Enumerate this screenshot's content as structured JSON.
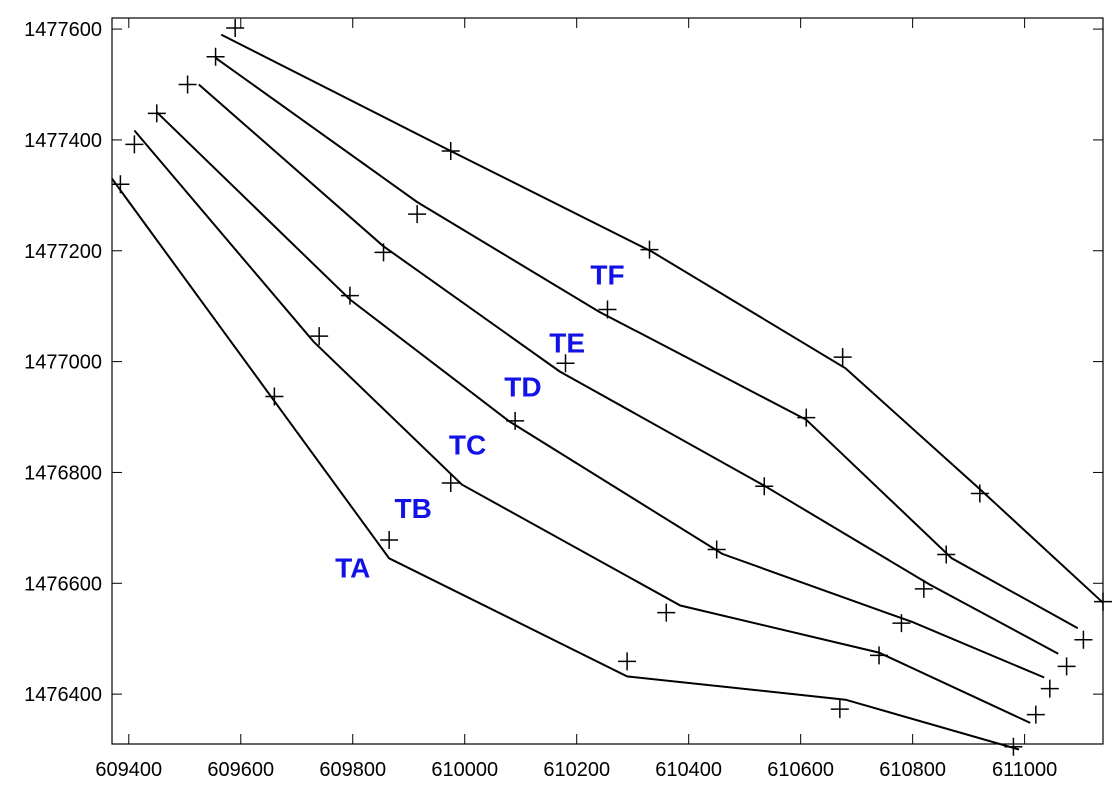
{
  "chart_data": {
    "type": "line",
    "title": "",
    "xlabel": "",
    "ylabel": "",
    "xlim": [
      609370,
      611140
    ],
    "ylim": [
      1476310,
      1477620
    ],
    "x_ticks": [
      609400,
      609600,
      609800,
      610000,
      610200,
      610400,
      610600,
      610800,
      611000
    ],
    "y_ticks": [
      1476400,
      1476600,
      1476800,
      1477000,
      1477200,
      1477400,
      1477600
    ],
    "label_color": "#1212e6",
    "line_color": "#000000",
    "series": [
      {
        "name": "TA",
        "label_at": [
          609800,
          1476610
        ],
        "line": [
          [
            609370,
            1477330
          ],
          [
            609865,
            1476645
          ],
          [
            610290,
            1476432
          ],
          [
            610680,
            1476390
          ],
          [
            610990,
            1476300
          ]
        ]
      },
      {
        "name": "TB",
        "label_at": [
          609908,
          1476718
        ],
        "line": [
          [
            609410,
            1477417
          ],
          [
            609730,
            1477036
          ],
          [
            609995,
            1476778
          ],
          [
            610385,
            1476560
          ],
          [
            610740,
            1476475
          ],
          [
            611010,
            1476348
          ]
        ]
      },
      {
        "name": "TC",
        "label_at": [
          610005,
          1476832
        ],
        "line": [
          [
            609450,
            1477450
          ],
          [
            609795,
            1477112
          ],
          [
            610080,
            1476892
          ],
          [
            610460,
            1476653
          ],
          [
            610800,
            1476530
          ],
          [
            611035,
            1476430
          ]
        ]
      },
      {
        "name": "TD",
        "label_at": [
          610104,
          1476937
        ],
        "line": [
          [
            609525,
            1477500
          ],
          [
            609855,
            1477208
          ],
          [
            610170,
            1476982
          ],
          [
            610535,
            1476776
          ],
          [
            610830,
            1476598
          ],
          [
            611060,
            1476473
          ]
        ]
      },
      {
        "name": "TE",
        "label_at": [
          610183,
          1477016
        ],
        "line": [
          [
            609555,
            1477548
          ],
          [
            609915,
            1477288
          ],
          [
            610240,
            1477090
          ],
          [
            610610,
            1476895
          ],
          [
            610870,
            1476645
          ],
          [
            611095,
            1476519
          ]
        ]
      },
      {
        "name": "TF",
        "label_at": [
          610255,
          1477139
        ],
        "line": [
          [
            609565,
            1477590
          ],
          [
            609975,
            1477380
          ],
          [
            610335,
            1477198
          ],
          [
            610680,
            1476988
          ],
          [
            610920,
            1476770
          ],
          [
            611140,
            1476565
          ]
        ]
      }
    ],
    "points": [
      [
        609385,
        1477320
      ],
      [
        609410,
        1477392
      ],
      [
        609450,
        1477448
      ],
      [
        609505,
        1477500
      ],
      [
        609555,
        1477550
      ],
      [
        609590,
        1477602
      ],
      [
        609660,
        1476937
      ],
      [
        609740,
        1477046
      ],
      [
        609795,
        1477119
      ],
      [
        609855,
        1477197
      ],
      [
        609915,
        1477266
      ],
      [
        609975,
        1477380
      ],
      [
        609865,
        1476678
      ],
      [
        609975,
        1476781
      ],
      [
        610090,
        1476893
      ],
      [
        610180,
        1476997
      ],
      [
        610255,
        1477094
      ],
      [
        610330,
        1477202
      ],
      [
        610290,
        1476459
      ],
      [
        610360,
        1476547
      ],
      [
        610450,
        1476661
      ],
      [
        610535,
        1476775
      ],
      [
        610610,
        1476899
      ],
      [
        610675,
        1477008
      ],
      [
        610670,
        1476373
      ],
      [
        610740,
        1476470
      ],
      [
        610780,
        1476528
      ],
      [
        610820,
        1476590
      ],
      [
        610860,
        1476652
      ],
      [
        610920,
        1476762
      ],
      [
        610980,
        1476305
      ],
      [
        611020,
        1476363
      ],
      [
        611045,
        1476410
      ],
      [
        611075,
        1476450
      ],
      [
        611105,
        1476498
      ],
      [
        611140,
        1476567
      ]
    ]
  }
}
